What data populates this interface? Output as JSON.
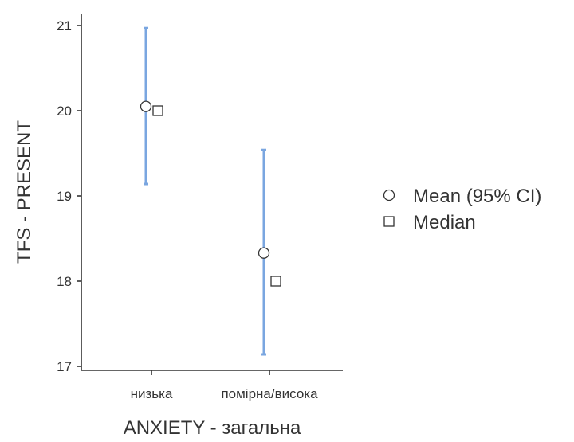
{
  "chart_data": {
    "type": "scatter",
    "xlabel": "ANXIETY - загальна",
    "ylabel": "TFS - PRESENT",
    "categories": [
      "низька",
      "помірна/висока"
    ],
    "ylim": [
      16.95,
      21.15
    ],
    "yticks": [
      17,
      18,
      19,
      20,
      21
    ],
    "ytick_labels": [
      "17",
      "18",
      "19",
      "20",
      "21"
    ],
    "series": [
      {
        "name": "Mean (95% CI)",
        "marker": "circle",
        "values": [
          20.05,
          18.33
        ],
        "ci_low": [
          19.14,
          17.14
        ],
        "ci_high": [
          20.97,
          19.54
        ]
      },
      {
        "name": "Median",
        "marker": "square",
        "values": [
          20.0,
          18.0
        ]
      }
    ],
    "grid": false,
    "legend_position": "right",
    "colors": {
      "error_bar": "#7aa6e0",
      "marker_stroke": "#333333",
      "axis": "#333333"
    }
  }
}
